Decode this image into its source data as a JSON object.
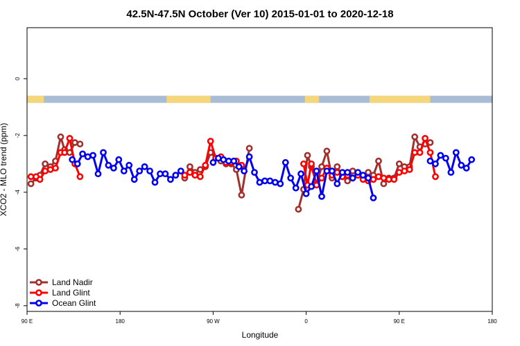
{
  "chart_data": {
    "type": "line",
    "title": "42.5N-47.5N October (Ver 10)   2015-01-01 to 2020-12-18",
    "xlabel": "Longitude",
    "ylabel": "XCO2 - MLO trend (ppm)",
    "xlim": [
      90,
      450
    ],
    "ylim": [
      -8.2,
      1.8
    ],
    "x_ticks": [
      {
        "value": 90,
        "label": "90 E"
      },
      {
        "value": 162,
        "label": "180"
      },
      {
        "value": 234,
        "label": "90 W"
      },
      {
        "value": 306,
        "label": "0"
      },
      {
        "value": 378,
        "label": "90 E"
      },
      {
        "value": 450,
        "label": "180"
      }
    ],
    "y_ticks": [
      {
        "value": 0,
        "label": "0"
      },
      {
        "value": -2,
        "label": "-2"
      },
      {
        "value": -4,
        "label": "-4"
      },
      {
        "value": -6,
        "label": "-6"
      },
      {
        "value": -8,
        "label": "-8"
      }
    ],
    "grid": false,
    "legend_position": "bottom-left",
    "land_ocean_bar": {
      "y_range": [
        -0.85,
        -0.6
      ],
      "land_color": "#f5d67a",
      "ocean_color": "#a9bcd6",
      "land_segments": [
        [
          90,
          103
        ],
        [
          198,
          232
        ],
        [
          305,
          316
        ],
        [
          355,
          402
        ]
      ]
    },
    "series": [
      {
        "name": "Land Nadir",
        "color": "#a0302e",
        "points": [
          [
            93,
            -3.7
          ],
          [
            97,
            -3.5
          ],
          [
            100,
            -3.4
          ],
          [
            104,
            -3.0
          ],
          [
            108,
            -3.1
          ],
          [
            112,
            -2.9
          ],
          [
            116,
            -2.05
          ],
          [
            119,
            -2.5
          ],
          [
            123,
            -2.6
          ],
          [
            127,
            -2.25
          ],
          [
            131,
            -2.3
          ],
          [
            212,
            -3.5
          ],
          [
            216,
            -3.1
          ],
          [
            220,
            -3.3
          ],
          [
            224,
            -3.2
          ],
          [
            228,
            -3.1
          ],
          [
            232,
            -2.6
          ],
          [
            236,
            -2.8
          ],
          [
            240,
            -2.9
          ],
          [
            244,
            -3.0
          ],
          [
            248,
            -3.0
          ],
          [
            252,
            -3.2
          ],
          [
            256,
            -4.1
          ],
          [
            262,
            -2.45
          ],
          [
            300,
            -4.6
          ],
          [
            304,
            -3.9
          ],
          [
            307,
            -2.7
          ],
          [
            310,
            -3.1
          ],
          [
            314,
            -3.7
          ],
          [
            318,
            -3.1
          ],
          [
            322,
            -2.55
          ],
          [
            326,
            -3.5
          ],
          [
            330,
            -3.1
          ],
          [
            334,
            -3.45
          ],
          [
            338,
            -3.6
          ],
          [
            342,
            -3.25
          ],
          [
            346,
            -3.4
          ],
          [
            350,
            -3.45
          ],
          [
            354,
            -3.3
          ],
          [
            358,
            -3.4
          ],
          [
            362,
            -2.9
          ],
          [
            366,
            -3.7
          ],
          [
            370,
            -3.5
          ],
          [
            374,
            -3.5
          ],
          [
            378,
            -3.0
          ],
          [
            382,
            -3.1
          ],
          [
            386,
            -3.1
          ],
          [
            390,
            -2.05
          ],
          [
            394,
            -2.4
          ],
          [
            398,
            -2.3
          ],
          [
            402,
            -2.25
          ]
        ]
      },
      {
        "name": "Land Glint",
        "color": "#ff0000",
        "points": [
          [
            93,
            -3.45
          ],
          [
            97,
            -3.45
          ],
          [
            100,
            -3.55
          ],
          [
            104,
            -3.25
          ],
          [
            108,
            -3.2
          ],
          [
            112,
            -3.15
          ],
          [
            116,
            -2.6
          ],
          [
            119,
            -2.6
          ],
          [
            123,
            -2.1
          ],
          [
            127,
            -3.0
          ],
          [
            131,
            -3.45
          ],
          [
            212,
            -3.4
          ],
          [
            216,
            -3.3
          ],
          [
            220,
            -3.4
          ],
          [
            224,
            -3.45
          ],
          [
            228,
            -3.05
          ],
          [
            232,
            -2.2
          ],
          [
            236,
            -2.8
          ],
          [
            240,
            -2.75
          ],
          [
            244,
            -2.95
          ],
          [
            248,
            -2.95
          ],
          [
            252,
            -2.9
          ],
          [
            256,
            -3.05
          ],
          [
            304,
            -3.0
          ],
          [
            307,
            -3.75
          ],
          [
            310,
            -3.0
          ],
          [
            314,
            -3.75
          ],
          [
            318,
            -3.5
          ],
          [
            322,
            -3.15
          ],
          [
            326,
            -3.4
          ],
          [
            330,
            -3.3
          ],
          [
            334,
            -3.45
          ],
          [
            338,
            -3.4
          ],
          [
            342,
            -3.5
          ],
          [
            346,
            -3.4
          ],
          [
            350,
            -3.55
          ],
          [
            354,
            -3.6
          ],
          [
            358,
            -3.55
          ],
          [
            362,
            -3.45
          ],
          [
            366,
            -3.5
          ],
          [
            370,
            -3.55
          ],
          [
            374,
            -3.55
          ],
          [
            378,
            -3.3
          ],
          [
            382,
            -3.25
          ],
          [
            386,
            -3.2
          ],
          [
            390,
            -2.6
          ],
          [
            394,
            -2.6
          ],
          [
            398,
            -2.1
          ],
          [
            402,
            -2.6
          ],
          [
            406,
            -3.45
          ]
        ]
      },
      {
        "name": "Ocean Glint",
        "color": "#0000ee",
        "points": [
          [
            125,
            -2.85
          ],
          [
            129,
            -3.0
          ],
          [
            133,
            -2.65
          ],
          [
            137,
            -2.75
          ],
          [
            141,
            -2.7
          ],
          [
            145,
            -3.35
          ],
          [
            149,
            -2.6
          ],
          [
            153,
            -3.05
          ],
          [
            157,
            -3.15
          ],
          [
            161,
            -2.85
          ],
          [
            165,
            -3.25
          ],
          [
            169,
            -3.05
          ],
          [
            173,
            -3.55
          ],
          [
            177,
            -3.25
          ],
          [
            181,
            -3.1
          ],
          [
            185,
            -3.25
          ],
          [
            189,
            -3.65
          ],
          [
            193,
            -3.35
          ],
          [
            197,
            -3.35
          ],
          [
            201,
            -3.55
          ],
          [
            205,
            -3.4
          ],
          [
            209,
            -3.25
          ],
          [
            234,
            -2.95
          ],
          [
            238,
            -2.8
          ],
          [
            242,
            -2.85
          ],
          [
            246,
            -2.9
          ],
          [
            250,
            -2.9
          ],
          [
            254,
            -3.1
          ],
          [
            258,
            -3.25
          ],
          [
            262,
            -2.75
          ],
          [
            266,
            -3.3
          ],
          [
            270,
            -3.65
          ],
          [
            274,
            -3.6
          ],
          [
            278,
            -3.6
          ],
          [
            282,
            -3.65
          ],
          [
            286,
            -3.7
          ],
          [
            290,
            -2.95
          ],
          [
            294,
            -3.5
          ],
          [
            298,
            -3.85
          ],
          [
            302,
            -3.35
          ],
          [
            306,
            -4.05
          ],
          [
            310,
            -3.8
          ],
          [
            314,
            -3.25
          ],
          [
            318,
            -4.15
          ],
          [
            322,
            -3.25
          ],
          [
            326,
            -3.25
          ],
          [
            330,
            -3.7
          ],
          [
            334,
            -3.3
          ],
          [
            338,
            -3.3
          ],
          [
            342,
            -3.5
          ],
          [
            346,
            -3.3
          ],
          [
            350,
            -3.4
          ],
          [
            354,
            -3.5
          ],
          [
            358,
            -4.2
          ],
          [
            402,
            -2.9
          ],
          [
            406,
            -3.0
          ],
          [
            410,
            -2.7
          ],
          [
            414,
            -2.8
          ],
          [
            418,
            -3.3
          ],
          [
            422,
            -2.6
          ],
          [
            426,
            -3.05
          ],
          [
            430,
            -3.15
          ],
          [
            434,
            -2.85
          ]
        ]
      }
    ]
  }
}
